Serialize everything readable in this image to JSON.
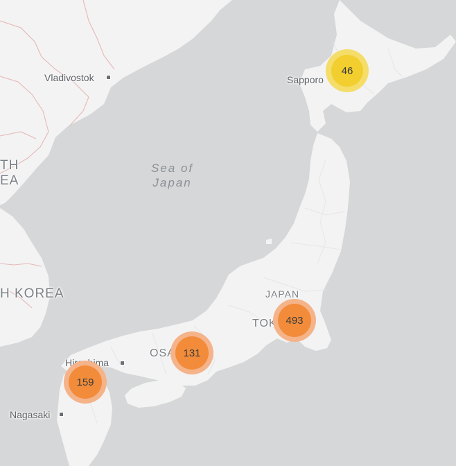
{
  "labels": {
    "vladivostok": "Vladivostok",
    "sapporo": "Sapporo",
    "hiroshima": "Hiroshima",
    "osaka": "OSAK",
    "tokyo": "TOKY",
    "nagasaki": "Nagasaki",
    "japan": "JAPAN",
    "south_korea": "H KOREA",
    "north_korea_line1": "TH",
    "north_korea_line2": "EA",
    "sea_line1": "Sea of",
    "sea_line2": "Japan"
  },
  "clusters": [
    {
      "id": "sapporo",
      "count": "46",
      "color": "#f2cf2f",
      "halo": "#f5dd6a"
    },
    {
      "id": "tokyo",
      "count": "493",
      "color": "#f28c3a",
      "halo": "#f5b38a"
    },
    {
      "id": "osaka",
      "count": "131",
      "color": "#f28c3a",
      "halo": "#f5b38a"
    },
    {
      "id": "hiroshima",
      "count": "159",
      "color": "#f28c3a",
      "halo": "#f5b38a"
    }
  ],
  "colors": {
    "water": "#d6d7d8",
    "land": "#f3f3f3",
    "border": "#e6b8b8"
  }
}
